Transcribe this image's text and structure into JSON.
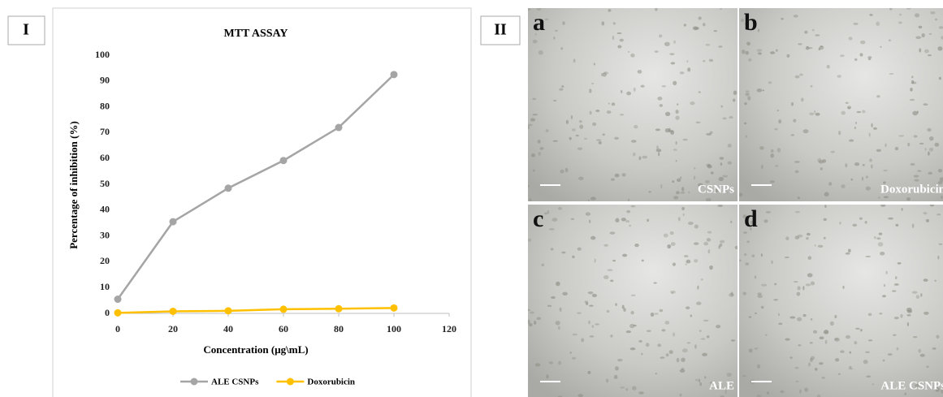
{
  "chart_data": {
    "type": "line",
    "title": "MTT ASSAY",
    "x_label": "Concentration (µg\\mL)",
    "y_label": "Percentage of inhibition (%)",
    "x": [
      0,
      20,
      40,
      60,
      80,
      100
    ],
    "series": [
      {
        "name": "ALE CSNPs",
        "color": "#a5a5a5",
        "values": [
          5.5,
          35.5,
          48.5,
          59.2,
          72,
          92.5
        ]
      },
      {
        "name": "Doxorubicin",
        "color": "#ffc000",
        "values": [
          0.2,
          0.8,
          1.0,
          1.6,
          1.8,
          2.1
        ]
      }
    ],
    "xlim": [
      0,
      120
    ],
    "xticks": [
      0,
      20,
      40,
      60,
      80,
      100,
      120
    ],
    "ylim": [
      0,
      100
    ],
    "yticks": [
      0,
      10,
      20,
      30,
      40,
      50,
      60,
      70,
      80,
      90,
      100
    ],
    "grid": false,
    "legend": "bottom"
  },
  "panel_labels": [
    "I",
    "II"
  ],
  "micrographs": [
    {
      "letter": "a",
      "caption": "CSNPs"
    },
    {
      "letter": "b",
      "caption": "Doxorubicin"
    },
    {
      "letter": "c",
      "caption": "ALE"
    },
    {
      "letter": "d",
      "caption": "ALE CSNPs"
    }
  ]
}
